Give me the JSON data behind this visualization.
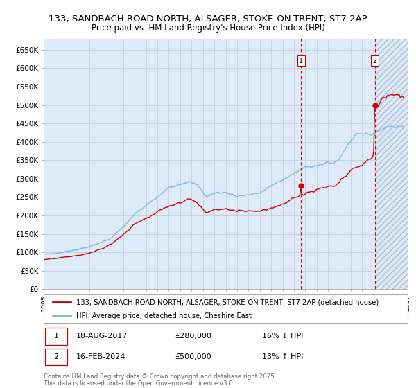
{
  "title_line1": "133, SANDBACH ROAD NORTH, ALSAGER, STOKE-ON-TRENT, ST7 2AP",
  "title_line2": "Price paid vs. HM Land Registry's House Price Index (HPI)",
  "ylabel_ticks": [
    "£0",
    "£50K",
    "£100K",
    "£150K",
    "£200K",
    "£250K",
    "£300K",
    "£350K",
    "£400K",
    "£450K",
    "£500K",
    "£550K",
    "£600K",
    "£650K"
  ],
  "ytick_vals": [
    0,
    50000,
    100000,
    150000,
    200000,
    250000,
    300000,
    350000,
    400000,
    450000,
    500000,
    550000,
    600000,
    650000
  ],
  "xmin": 1995.0,
  "xmax": 2027.0,
  "ymin": 0,
  "ymax": 680000,
  "purchase1_date": 2017.622,
  "purchase1_price": 280000,
  "purchase2_date": 2024.122,
  "purchase2_price": 500000,
  "hpi_color": "#7bb8e0",
  "property_color": "#cc0000",
  "vline_color": "#cc0000",
  "background_color": "#ddeaf7",
  "grid_color": "#c0c8d8",
  "legend_label1": "133, SANDBACH ROAD NORTH, ALSAGER, STOKE-ON-TRENT, ST7 2AP (detached house)",
  "legend_label2": "HPI: Average price, detached house, Cheshire East",
  "annotation1_date": "18-AUG-2017",
  "annotation1_price": "£280,000",
  "annotation1_hpi": "16% ↓ HPI",
  "annotation2_date": "16-FEB-2024",
  "annotation2_price": "£500,000",
  "annotation2_hpi": "13% ↑ HPI",
  "footer_text": "Contains HM Land Registry data © Crown copyright and database right 2025.\nThis data is licensed under the Open Government Licence v3.0."
}
